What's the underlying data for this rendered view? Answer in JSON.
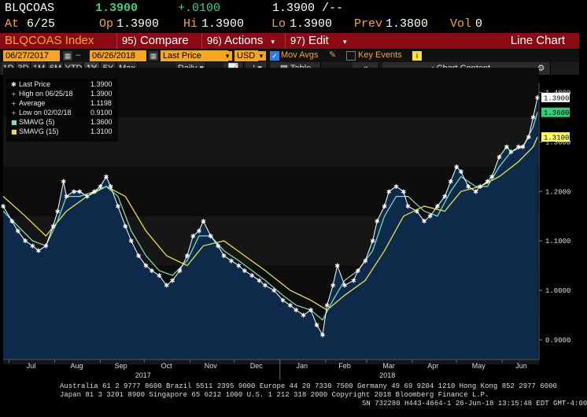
{
  "header": {
    "ticker": "BLQCOAS",
    "last": "1.3900",
    "change": "+.0100",
    "bid_ask": "1.3900 /--",
    "at_label": "At",
    "at_value": "6/25",
    "op_label": "Op",
    "op_value": "1.3900",
    "hi_label": "Hi",
    "hi_value": "1.3900",
    "lo_label": "Lo",
    "lo_value": "1.3900",
    "prev_label": "Prev",
    "prev_value": "1.3800",
    "vol_label": "Vol",
    "vol_value": "0"
  },
  "menu": {
    "index_name": "BLQCOAS Index",
    "compare_num": "95)",
    "compare_label": "Compare",
    "actions_num": "96)",
    "actions_label": "Actions",
    "edit_num": "97)",
    "edit_label": "Edit",
    "chart_type": "Line Chart"
  },
  "controls": {
    "start_date": "06/27/2017",
    "end_date": "06/26/2018",
    "field": "Last Price",
    "currency": "USD",
    "mov_avgs": "Mov Avgs",
    "key_events": "Key Events",
    "periods": [
      "1D",
      "3D",
      "1M",
      "6M",
      "YTD",
      "1Y",
      "5Y",
      "Max"
    ],
    "selected_period": "1Y",
    "frequency": "Daily",
    "table_label": "Table",
    "chart_content_label": "Chart Content"
  },
  "legend": {
    "items": [
      {
        "label": "Last Price",
        "value": "1.3900"
      },
      {
        "label": "High on 06/25/18",
        "value": "1.3900"
      },
      {
        "label": "Average",
        "value": "1.1198"
      },
      {
        "label": "Low on 02/02/18",
        "value": "0.9100"
      },
      {
        "label": "SMAVG (5)",
        "value": "1.3600"
      },
      {
        "label": "SMAVG (15)",
        "value": "1.3100"
      }
    ]
  },
  "colors": {
    "price_line": "#ffffff",
    "area_fill": "#0e2a4a",
    "smavg5": "#7fe3c2",
    "smavg15": "#e8e04a",
    "last_tag_bg": "#ffffff",
    "sma5_tag_bg": "#34d17a",
    "sma15_tag_bg": "#ffff66",
    "accent": "#f5a623",
    "menu_bg": "#8b0a14"
  },
  "chart_data": {
    "type": "line",
    "title": "",
    "xlabel": "",
    "ylabel": "",
    "ylim": [
      0.86,
      1.42
    ],
    "y_ticks": [
      "0.9000",
      "1.0000",
      "1.1000",
      "1.2000",
      "1.3000",
      "1.4000"
    ],
    "x_month_labels": [
      "Jul",
      "Aug",
      "Sep",
      "Oct",
      "Nov",
      "Dec",
      "Jan",
      "Feb",
      "Mar",
      "Apr",
      "May",
      "Jun"
    ],
    "x_year_labels": [
      "2017",
      "2018"
    ],
    "price_tags": {
      "last": "1.3900",
      "smavg5": "1.3600",
      "smavg15": "1.3100"
    },
    "series": [
      {
        "name": "Last Price",
        "x": [
          "2017-06-27",
          "2017-07-03",
          "2017-07-07",
          "2017-07-12",
          "2017-07-17",
          "2017-07-21",
          "2017-07-26",
          "2017-07-31",
          "2017-08-03",
          "2017-08-07",
          "2017-08-09",
          "2017-08-14",
          "2017-08-18",
          "2017-08-23",
          "2017-08-28",
          "2017-09-01",
          "2017-09-05",
          "2017-09-08",
          "2017-09-13",
          "2017-09-18",
          "2017-09-22",
          "2017-09-27",
          "2017-10-02",
          "2017-10-06",
          "2017-10-11",
          "2017-10-16",
          "2017-10-20",
          "2017-10-25",
          "2017-10-30",
          "2017-11-03",
          "2017-11-07",
          "2017-11-10",
          "2017-11-15",
          "2017-11-20",
          "2017-11-24",
          "2017-11-29",
          "2017-12-04",
          "2017-12-08",
          "2017-12-13",
          "2017-12-18",
          "2017-12-22",
          "2017-12-28",
          "2018-01-03",
          "2018-01-08",
          "2018-01-12",
          "2018-01-17",
          "2018-01-22",
          "2018-01-26",
          "2018-01-30",
          "2018-02-02",
          "2018-02-06",
          "2018-02-09",
          "2018-02-14",
          "2018-02-20",
          "2018-02-23",
          "2018-02-28",
          "2018-03-05",
          "2018-03-08",
          "2018-03-13",
          "2018-03-16",
          "2018-03-21",
          "2018-03-26",
          "2018-03-29",
          "2018-04-04",
          "2018-04-09",
          "2018-04-13",
          "2018-04-18",
          "2018-04-23",
          "2018-04-27",
          "2018-05-01",
          "2018-05-04",
          "2018-05-09",
          "2018-05-14",
          "2018-05-17",
          "2018-05-22",
          "2018-05-25",
          "2018-05-30",
          "2018-06-04",
          "2018-06-07",
          "2018-06-12",
          "2018-06-15",
          "2018-06-19",
          "2018-06-22",
          "2018-06-25"
        ],
        "values": [
          1.17,
          1.14,
          1.12,
          1.1,
          1.09,
          1.08,
          1.09,
          1.13,
          1.16,
          1.22,
          1.19,
          1.2,
          1.2,
          1.19,
          1.2,
          1.21,
          1.23,
          1.21,
          1.17,
          1.13,
          1.1,
          1.07,
          1.05,
          1.04,
          1.03,
          1.01,
          1.02,
          1.04,
          1.07,
          1.11,
          1.12,
          1.14,
          1.11,
          1.09,
          1.07,
          1.06,
          1.05,
          1.04,
          1.03,
          1.02,
          1.01,
          1.0,
          0.98,
          0.97,
          0.96,
          0.95,
          0.96,
          0.93,
          0.91,
          0.97,
          1.01,
          1.05,
          1.01,
          1.02,
          1.04,
          1.06,
          1.1,
          1.14,
          1.17,
          1.2,
          1.21,
          1.2,
          1.17,
          1.16,
          1.14,
          1.15,
          1.17,
          1.19,
          1.22,
          1.25,
          1.24,
          1.21,
          1.2,
          1.21,
          1.22,
          1.23,
          1.27,
          1.29,
          1.28,
          1.29,
          1.29,
          1.31,
          1.35,
          1.39
        ]
      },
      {
        "name": "SMAVG (5)",
        "x": [
          "2017-06-27",
          "2017-07-07",
          "2017-07-17",
          "2017-07-26",
          "2017-08-03",
          "2017-08-09",
          "2017-08-18",
          "2017-08-28",
          "2017-09-05",
          "2017-09-13",
          "2017-09-22",
          "2017-10-02",
          "2017-10-11",
          "2017-10-20",
          "2017-10-30",
          "2017-11-07",
          "2017-11-15",
          "2017-11-24",
          "2017-12-04",
          "2017-12-13",
          "2017-12-22",
          "2018-01-03",
          "2018-01-12",
          "2018-01-22",
          "2018-01-30",
          "2018-02-06",
          "2018-02-14",
          "2018-02-23",
          "2018-03-05",
          "2018-03-13",
          "2018-03-21",
          "2018-03-29",
          "2018-04-09",
          "2018-04-18",
          "2018-04-27",
          "2018-05-04",
          "2018-05-14",
          "2018-05-22",
          "2018-05-30",
          "2018-06-07",
          "2018-06-15",
          "2018-06-22",
          "2018-06-25"
        ],
        "values": [
          1.16,
          1.13,
          1.1,
          1.09,
          1.14,
          1.19,
          1.19,
          1.2,
          1.21,
          1.19,
          1.12,
          1.07,
          1.04,
          1.03,
          1.06,
          1.11,
          1.11,
          1.08,
          1.06,
          1.04,
          1.02,
          0.99,
          0.97,
          0.96,
          0.94,
          0.98,
          1.02,
          1.04,
          1.08,
          1.15,
          1.19,
          1.19,
          1.16,
          1.15,
          1.2,
          1.23,
          1.21,
          1.21,
          1.25,
          1.28,
          1.29,
          1.33,
          1.36
        ]
      },
      {
        "name": "SMAVG (15)",
        "x": [
          "2017-06-27",
          "2017-07-12",
          "2017-07-26",
          "2017-08-09",
          "2017-08-23",
          "2017-09-05",
          "2017-09-18",
          "2017-10-02",
          "2017-10-16",
          "2017-10-30",
          "2017-11-10",
          "2017-11-24",
          "2017-12-08",
          "2017-12-22",
          "2018-01-08",
          "2018-01-22",
          "2018-02-02",
          "2018-02-14",
          "2018-02-28",
          "2018-03-13",
          "2018-03-26",
          "2018-04-09",
          "2018-04-23",
          "2018-05-04",
          "2018-05-17",
          "2018-05-30",
          "2018-06-12",
          "2018-06-22",
          "2018-06-25"
        ],
        "values": [
          1.19,
          1.15,
          1.11,
          1.16,
          1.19,
          1.21,
          1.19,
          1.12,
          1.07,
          1.05,
          1.09,
          1.1,
          1.07,
          1.04,
          1.0,
          0.98,
          0.96,
          0.99,
          1.02,
          1.08,
          1.15,
          1.17,
          1.16,
          1.2,
          1.21,
          1.23,
          1.26,
          1.29,
          1.31
        ]
      }
    ]
  },
  "footer": {
    "line1": "Australia 61 2 9777 8600 Brazil 5511 2395 9000 Europe 44 20 7330 7500 Germany 49 69 9204 1210 Hong Kong 852 2977 6000",
    "line2": "Japan 81 3 3201 8900        Singapore 65 6212 1000       U.S. 1 212 318 2000          Copyright 2018 Bloomberg Finance L.P.",
    "line3": "SN 732280 H443-4664-1 26-Jun-18 13:15:48 EDT  GMT-4:00"
  }
}
